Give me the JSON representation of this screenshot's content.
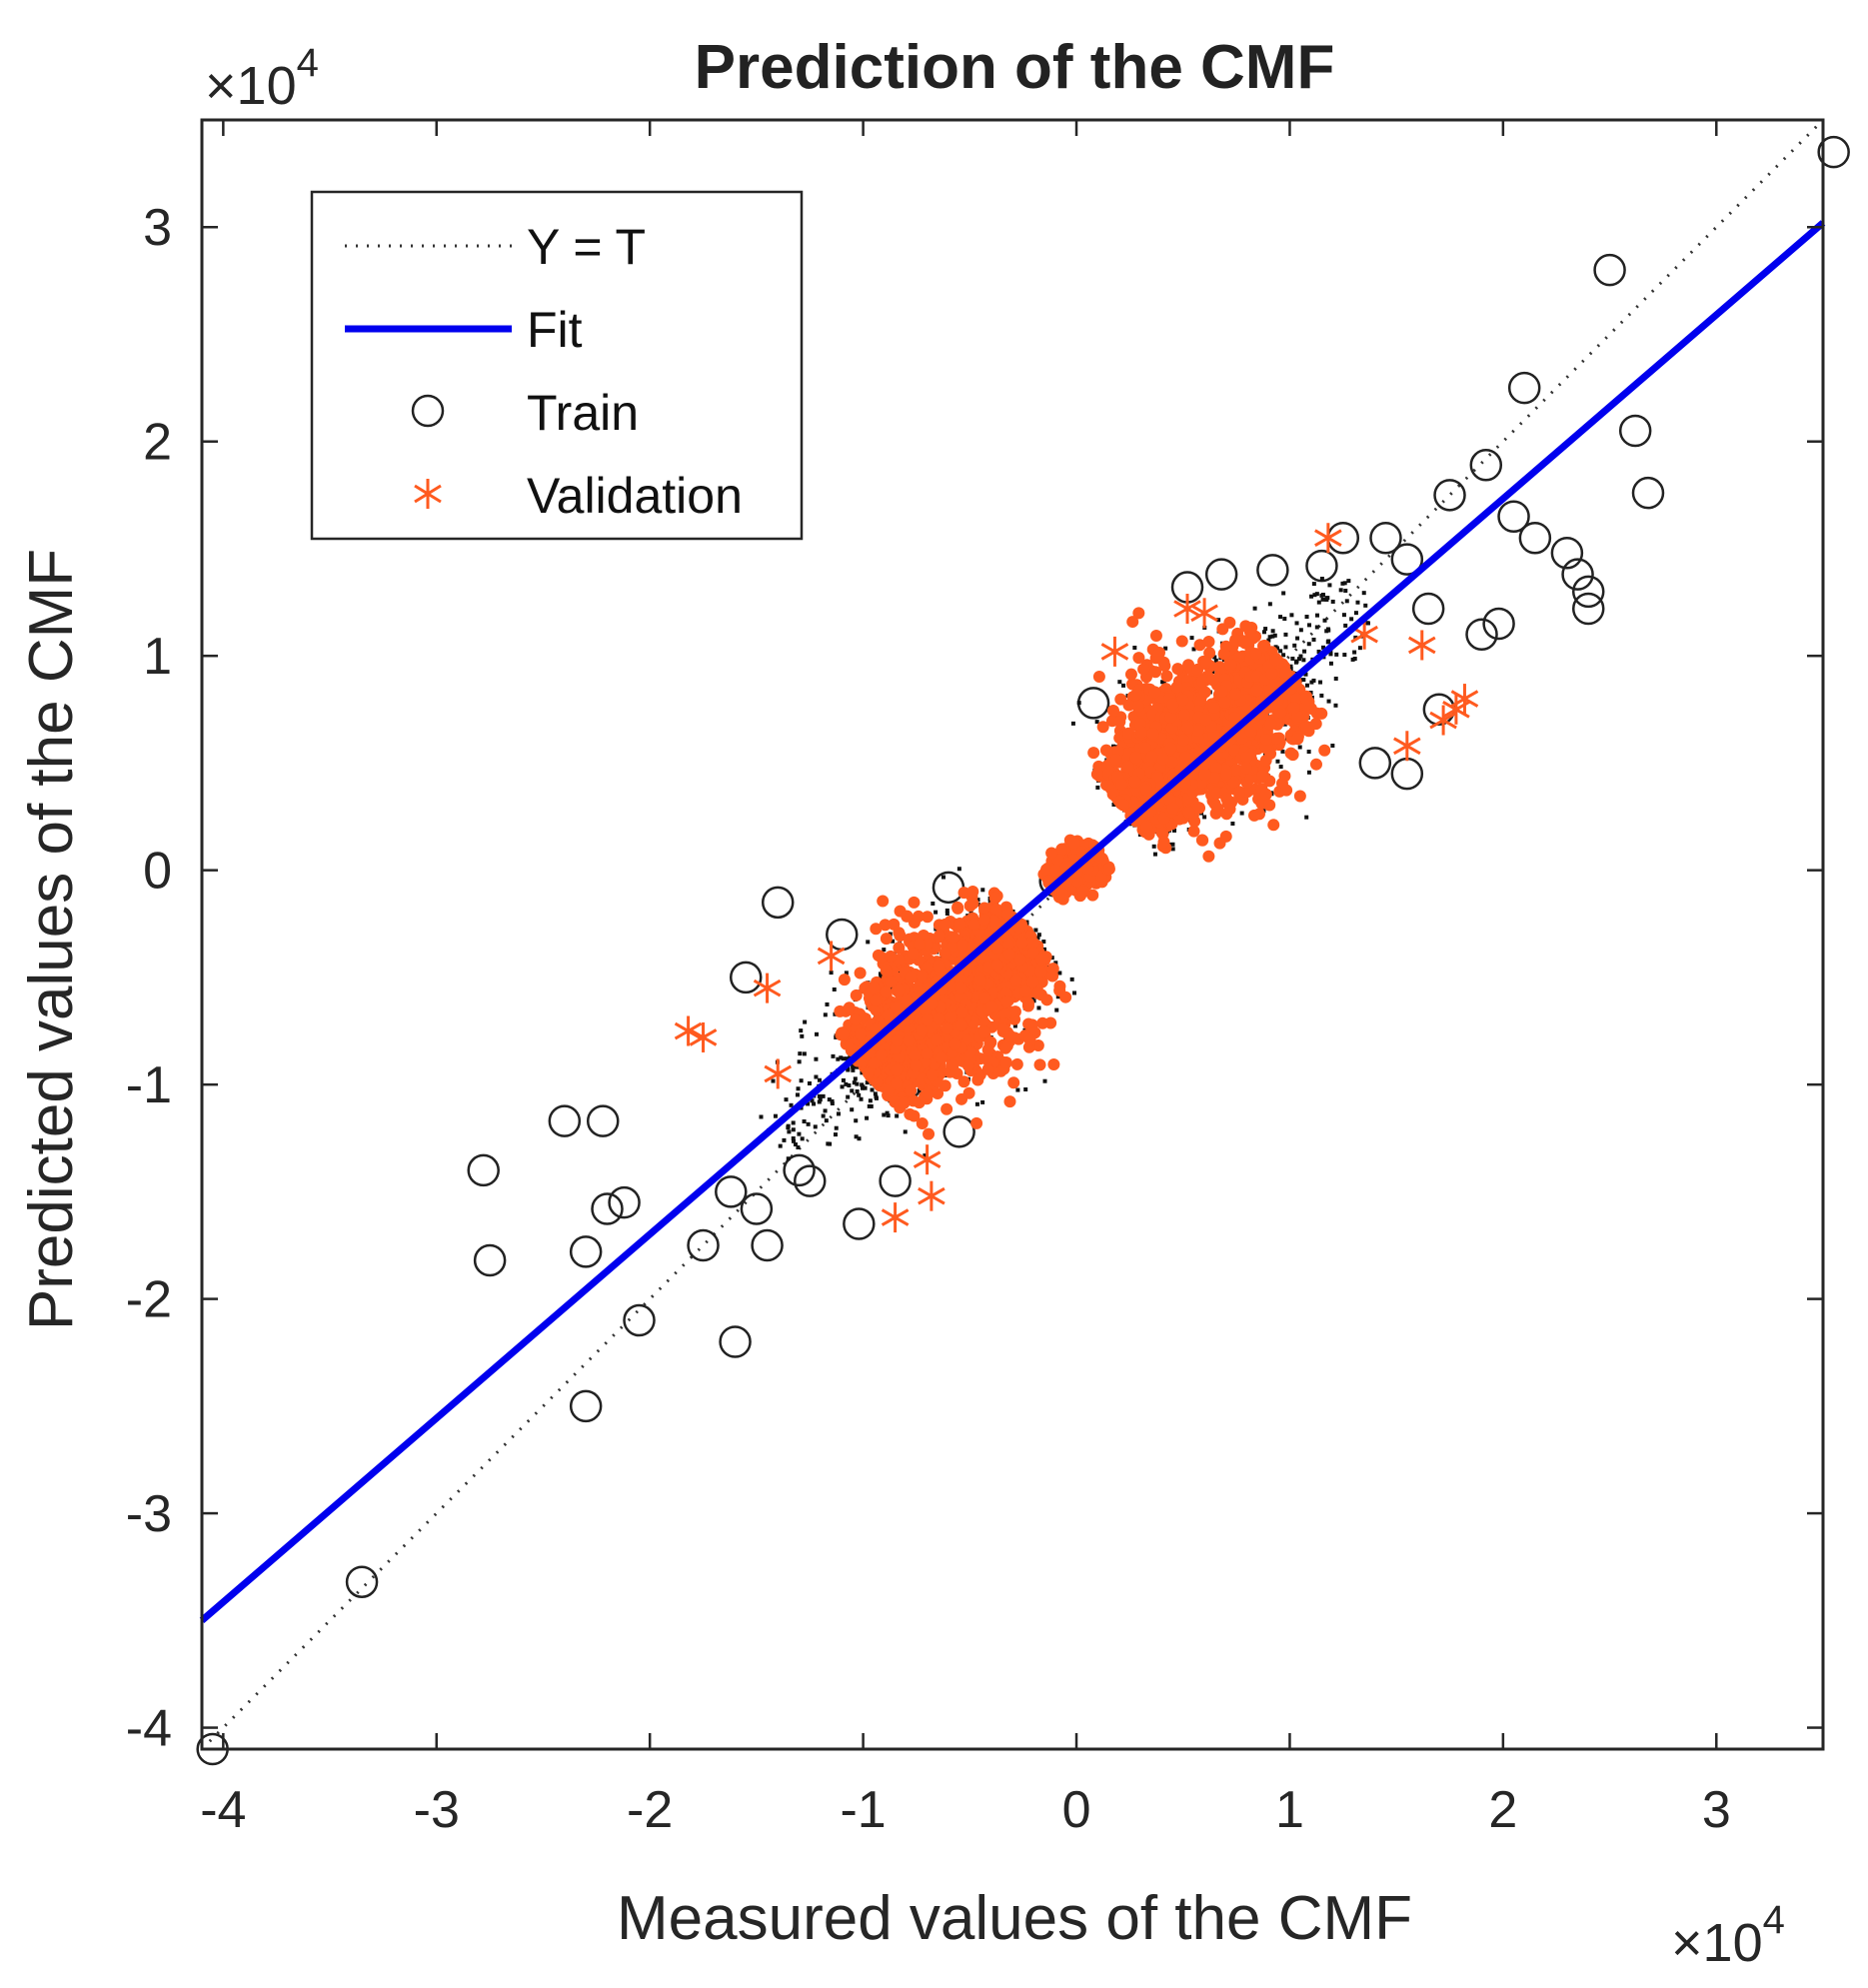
{
  "chart_data": {
    "type": "scatter",
    "title": "Prediction of the CMF",
    "xlabel": "Measured values of the CMF",
    "ylabel": "Predicted values of the CMF",
    "x_exponent_label": "×10",
    "x_exponent_power": "4",
    "y_exponent_label": "×10",
    "y_exponent_power": "4",
    "xlim": [
      -4.1,
      3.5
    ],
    "ylim": [
      -4.1,
      3.5
    ],
    "axis_scale": 10000,
    "xticks": [
      -4,
      -3,
      -2,
      -1,
      0,
      1,
      2,
      3
    ],
    "yticks": [
      -4,
      -3,
      -2,
      -1,
      0,
      1,
      2,
      3
    ],
    "xtick_labels": [
      "-4",
      "-3",
      "-2",
      "-1",
      "0",
      "1",
      "2",
      "3"
    ],
    "ytick_labels": [
      "-4",
      "-3",
      "-2",
      "-1",
      "0",
      "1",
      "2",
      "3"
    ],
    "grid": false,
    "legend_position": "top-left",
    "legend": [
      {
        "label": "Y = T",
        "style": "dotted-line",
        "color": "#333333"
      },
      {
        "label": "Fit",
        "style": "solid-line",
        "color": "#0000ee"
      },
      {
        "label": "Train",
        "style": "circle",
        "color": "#222222"
      },
      {
        "label": "Validation",
        "style": "asterisk",
        "color": "#ff5a1f"
      }
    ],
    "identity_line": {
      "x": [
        -4.1,
        3.5
      ],
      "y": [
        -4.1,
        3.5
      ]
    },
    "fit_line": {
      "x": [
        -4.1,
        3.5
      ],
      "y": [
        -3.5,
        3.02
      ]
    },
    "train_outliers": {
      "x": [
        -4.05,
        -3.35,
        -2.78,
        -2.75,
        -2.4,
        -2.22,
        -2.3,
        -2.2,
        -2.12,
        -2.05,
        -2.3,
        -1.6,
        -1.75,
        -1.45,
        -1.5,
        -1.62,
        -1.55,
        -1.4,
        -1.3,
        -1.25,
        -1.02,
        -1.1,
        -0.85,
        -0.8,
        -0.55,
        -0.6,
        3.55,
        2.5,
        2.1,
        2.62,
        2.68,
        1.75,
        1.92,
        2.05,
        2.15,
        2.3,
        2.35,
        2.4,
        2.4,
        1.9,
        1.98,
        1.65,
        1.55,
        1.45,
        1.25,
        1.15,
        0.92,
        0.68,
        0.52,
        -0.1,
        0.08,
        1.4,
        1.55,
        1.7
      ],
      "y": [
        -4.1,
        -3.32,
        -1.4,
        -1.82,
        -1.17,
        -1.17,
        -1.78,
        -1.58,
        -1.55,
        -2.1,
        -2.5,
        -2.2,
        -1.75,
        -1.75,
        -1.58,
        -1.5,
        -0.5,
        -0.15,
        -1.4,
        -1.45,
        -1.65,
        -0.3,
        -1.45,
        -1.0,
        -1.22,
        -0.08,
        3.35,
        2.8,
        2.25,
        2.05,
        1.76,
        1.75,
        1.89,
        1.65,
        1.55,
        1.48,
        1.38,
        1.3,
        1.22,
        1.1,
        1.15,
        1.22,
        1.45,
        1.55,
        1.55,
        1.42,
        1.4,
        1.38,
        1.32,
        -0.05,
        0.78,
        0.5,
        0.45,
        0.75
      ]
    },
    "validation_outliers": {
      "x": [
        -1.82,
        -1.75,
        -1.45,
        -1.4,
        -1.15,
        -0.85,
        -0.7,
        -0.68,
        1.18,
        0.52,
        0.6,
        0.18,
        1.55,
        1.72,
        1.78,
        1.82,
        1.62,
        1.35
      ],
      "y": [
        -0.75,
        -0.78,
        -0.55,
        -0.95,
        -0.4,
        -1.62,
        -1.35,
        -1.52,
        1.55,
        1.22,
        1.2,
        1.02,
        0.58,
        0.7,
        0.75,
        0.8,
        1.05,
        1.1
      ]
    },
    "train_core": {
      "segments": [
        {
          "center": [
            -0.62,
            -0.62
          ],
          "slope": 0.88,
          "half_length": 0.55,
          "spread": 0.22,
          "count": 420
        },
        {
          "center": [
            0.62,
            0.62
          ],
          "slope": 0.88,
          "half_length": 0.55,
          "spread": 0.22,
          "count": 420
        },
        {
          "center": [
            -1.15,
            -1.05
          ],
          "slope": 0.9,
          "half_length": 0.35,
          "spread": 0.15,
          "count": 120
        },
        {
          "center": [
            1.1,
            1.05
          ],
          "slope": 0.9,
          "half_length": 0.35,
          "spread": 0.15,
          "count": 120
        }
      ]
    },
    "validation_core": {
      "segments": [
        {
          "center": [
            -0.6,
            -0.62
          ],
          "slope": 0.85,
          "half_length": 0.5,
          "spread": 0.19,
          "count": 1500
        },
        {
          "center": [
            0.6,
            0.62
          ],
          "slope": 0.85,
          "half_length": 0.5,
          "spread": 0.19,
          "count": 1500
        },
        {
          "center": [
            0.0,
            0.0
          ],
          "slope": 0.7,
          "half_length": 0.14,
          "spread": 0.06,
          "count": 260
        }
      ]
    }
  }
}
